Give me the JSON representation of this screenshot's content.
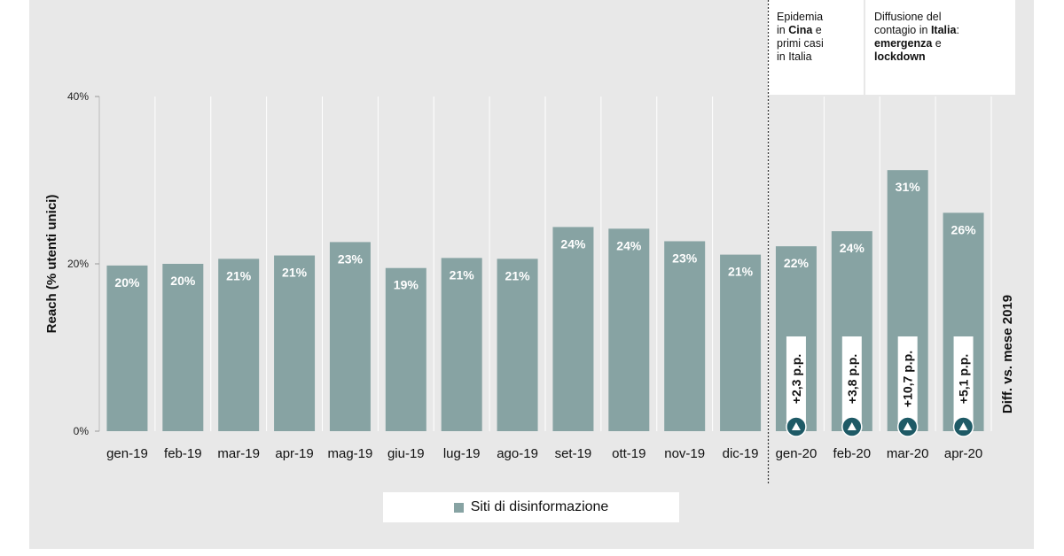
{
  "chart_data": {
    "type": "bar",
    "ylabel": "Reach (% utenti unici)",
    "right_label": "Diff. vs. mese 2019",
    "ylim": [
      0,
      40
    ],
    "yticks": [
      "0%",
      "20%",
      "40%"
    ],
    "categories": [
      "gen-19",
      "feb-19",
      "mar-19",
      "apr-19",
      "mag-19",
      "giu-19",
      "lug-19",
      "ago-19",
      "set-19",
      "ott-19",
      "nov-19",
      "dic-19",
      "gen-20",
      "feb-20",
      "mar-20",
      "apr-20"
    ],
    "series": [
      {
        "name": "Siti di disinformazione",
        "values": [
          19.8,
          20.0,
          20.6,
          21.0,
          22.6,
          19.5,
          20.7,
          20.6,
          24.4,
          24.2,
          22.7,
          21.1,
          22.1,
          23.9,
          31.2,
          26.1
        ],
        "labels": [
          "20%",
          "20%",
          "21%",
          "21%",
          "23%",
          "19%",
          "21%",
          "21%",
          "24%",
          "24%",
          "23%",
          "21%",
          "22%",
          "24%",
          "31%",
          "26%"
        ]
      }
    ],
    "differences": [
      {
        "category": "gen-20",
        "label": "+2,3 p.p."
      },
      {
        "category": "feb-20",
        "label": "+3,8 p.p."
      },
      {
        "category": "mar-20",
        "label": "+10,7 p.p."
      },
      {
        "category": "apr-20",
        "label": "+5,1 p.p."
      }
    ],
    "colors": {
      "bar": "#87a3a3",
      "marker": "#1e5a66",
      "background": "#e8e8e8"
    },
    "grid": false,
    "legend_position": "bottom-center"
  },
  "annotations": {
    "box1": {
      "l1": "Epidemia",
      "l2a": "in ",
      "l2b": "Cina",
      "l2c": " e",
      "l3": "primi casi",
      "l4": "in Italia"
    },
    "box2": {
      "l1": "Diffusione del",
      "l2a": "contagio in ",
      "l2b": "Italia",
      "l2c": ":",
      "l3a": "emergenza",
      "l3b": " e",
      "l4": "lockdown"
    }
  },
  "legend": {
    "label": "Siti di disinformazione",
    "icon": "square-swatch"
  }
}
